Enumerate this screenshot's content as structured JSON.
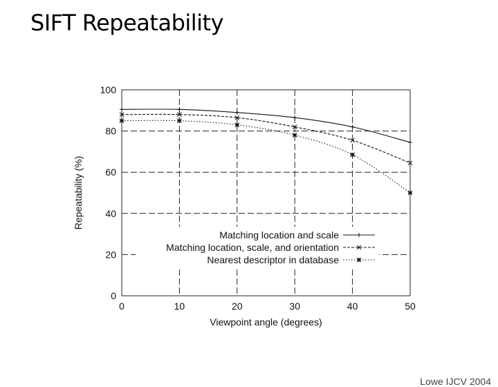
{
  "slide": {
    "title": "SIFT Repeatability",
    "citation": "Lowe IJCV 2004"
  },
  "chart_data": {
    "type": "line",
    "title": "",
    "xlabel": "Viewpoint angle (degrees)",
    "ylabel": "Repeatability (%)",
    "xlim": [
      0,
      50
    ],
    "ylim": [
      0,
      100
    ],
    "xticks": [
      0,
      10,
      20,
      30,
      40,
      50
    ],
    "yticks": [
      0,
      20,
      40,
      60,
      80,
      100
    ],
    "x": [
      0,
      10,
      20,
      30,
      40,
      50
    ],
    "grid": true,
    "legend_position": "bottom-right",
    "series": [
      {
        "name": "Matching location and scale",
        "values": [
          90.5,
          90.5,
          89,
          86.5,
          82,
          74.5
        ],
        "dash": "solid",
        "marker": "+"
      },
      {
        "name": "Matching location, scale, and orientation",
        "values": [
          88,
          88,
          86.5,
          82,
          75.5,
          64.5
        ],
        "dash": "dashed",
        "marker": "x"
      },
      {
        "name": "Nearest descriptor in database",
        "values": [
          85,
          85,
          83,
          78,
          68.5,
          50
        ],
        "dash": "dotted",
        "marker": "*"
      }
    ]
  }
}
